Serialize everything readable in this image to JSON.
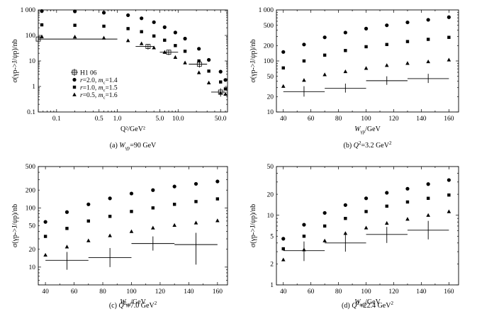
{
  "chart_data": [
    {
      "id": "a",
      "type": "scatter",
      "xscale": "log",
      "yscale": "log",
      "xlim": [
        0.05,
        65
      ],
      "ylim": [
        0.1,
        1000
      ],
      "xticks": [
        0.1,
        0.5,
        1.0,
        5.0,
        10.0,
        50.0
      ],
      "xtick_labels": [
        "0.1",
        "0.5",
        "1.0",
        "5.0",
        "10.0",
        "50.0"
      ],
      "yticks": [
        0.1,
        1,
        10,
        100,
        1000
      ],
      "ytick_labels": [
        "0.1",
        "1",
        "10",
        "100",
        "1 000"
      ],
      "xlabel": "Q²/GeV²",
      "ylabel": "σ(γp->J/ψp)/nb",
      "caption": "(a) W_γp=90 GeV",
      "caption_parts": [
        "(a) ",
        "W",
        "γp",
        "=90 GeV"
      ],
      "legend": {
        "position": "center-left",
        "entries": [
          {
            "marker": "open-square-cross",
            "label": "H1 06"
          },
          {
            "marker": "circle",
            "label": "r=2.0, m_c=1.4",
            "parts": [
              "r",
              "=2.0, ",
              "m",
              "c",
              "=1.4"
            ]
          },
          {
            "marker": "square",
            "label": "r=1.0, m_c=1.5",
            "parts": [
              "r",
              "=1.0, ",
              "m",
              "c",
              "=1.5"
            ]
          },
          {
            "marker": "triangle",
            "label": "r=0.5, m_c=1.6",
            "parts": [
              "r",
              "=0.5, ",
              "m",
              "c",
              "=1.6"
            ]
          }
        ]
      },
      "series": [
        {
          "name": "r=2.0, m_c=1.4",
          "marker": "circle",
          "x": [
            0.05,
            0.2,
            0.6,
            1.5,
            2.5,
            4.0,
            6.0,
            9.0,
            13.0,
            22.0,
            32.0,
            50.0,
            60.0
          ],
          "y": [
            900,
            880,
            780,
            620,
            470,
            330,
            210,
            130,
            75,
            30,
            11,
            3.8,
            1.8
          ]
        },
        {
          "name": "r=1.0, m_c=1.5",
          "marker": "square",
          "x": [
            0.05,
            0.2,
            0.6,
            1.5,
            2.5,
            4.0,
            6.0,
            9.0,
            13.0,
            22.0,
            32.0,
            50.0,
            60.0
          ],
          "y": [
            260,
            250,
            230,
            185,
            140,
            95,
            65,
            40,
            24,
            10,
            4,
            1.5,
            0.8
          ]
        },
        {
          "name": "r=0.5, m_c=1.6",
          "marker": "triangle",
          "x": [
            0.05,
            0.2,
            0.6,
            1.5,
            2.5,
            4.0,
            6.0,
            9.0,
            13.0,
            22.0,
            32.0,
            50.0,
            60.0
          ],
          "y": [
            90,
            88,
            80,
            63,
            48,
            33,
            22,
            14,
            8.5,
            3.5,
            1.4,
            0.55,
            0.5
          ]
        },
        {
          "name": "H1 06",
          "marker": "open-square-cross",
          "x": [
            0.05,
            3.2,
            7.0,
            22.4,
            50.0
          ],
          "xlo": [
            0.05,
            2.0,
            5.0,
            15.0,
            35.0
          ],
          "xhi": [
            1.0,
            4.0,
            10.0,
            30.0,
            60.0
          ],
          "y": [
            72,
            37,
            22,
            7.5,
            0.6
          ],
          "ylo": [
            60,
            28,
            17,
            5.5,
            0.4
          ],
          "yhi": [
            85,
            45,
            27,
            9.0,
            0.85
          ]
        }
      ]
    },
    {
      "id": "b",
      "type": "scatter",
      "xscale": "linear",
      "yscale": "log",
      "xlim": [
        35,
        167
      ],
      "ylim": [
        10,
        1000
      ],
      "xticks": [
        40,
        60,
        80,
        100,
        120,
        140,
        160
      ],
      "xtick_labels": [
        "40",
        "60",
        "80",
        "100",
        "120",
        "140",
        "160"
      ],
      "yticks": [
        10,
        20,
        50,
        100,
        200,
        500,
        1000
      ],
      "ytick_labels": [
        "10",
        "20",
        "50",
        "100",
        "200",
        "500",
        "1 000"
      ],
      "xlabel": "W_γp/GeV",
      "xlabel_parts": [
        "W",
        "γp",
        "/GeV"
      ],
      "ylabel": "σ(γp->J/ψp)/nb",
      "caption": "(b) Q²=3.2 GeV²",
      "caption_parts": [
        "(b) ",
        "Q",
        "2",
        "=3.2 GeV",
        "2"
      ],
      "series": [
        {
          "name": "r=2.0",
          "marker": "circle",
          "x": [
            40,
            55,
            70,
            85,
            100,
            115,
            130,
            145,
            160
          ],
          "y": [
            150,
            210,
            290,
            360,
            430,
            500,
            570,
            640,
            720
          ]
        },
        {
          "name": "r=1.0",
          "marker": "square",
          "x": [
            40,
            55,
            70,
            85,
            100,
            115,
            130,
            145,
            160
          ],
          "y": [
            73,
            100,
            130,
            160,
            190,
            210,
            240,
            265,
            290
          ]
        },
        {
          "name": "r=0.5",
          "marker": "triangle",
          "x": [
            40,
            55,
            70,
            85,
            100,
            115,
            130,
            145,
            160
          ],
          "y": [
            32,
            42,
            54,
            62,
            72,
            82,
            90,
            97,
            105
          ]
        },
        {
          "name": "H1 06",
          "marker": "open-square-cross",
          "x": [
            55,
            85,
            115,
            145
          ],
          "xlo": [
            40,
            70,
            100,
            130
          ],
          "xhi": [
            70,
            100,
            130,
            160
          ],
          "y": [
            25,
            29,
            41,
            45
          ],
          "ylo": [
            20,
            24,
            34,
            37
          ],
          "yhi": [
            32,
            36,
            50,
            56
          ]
        }
      ]
    },
    {
      "id": "c",
      "type": "scatter",
      "xscale": "linear",
      "yscale": "log",
      "xlim": [
        35,
        167
      ],
      "ylim": [
        5,
        500
      ],
      "xticks": [
        40,
        60,
        80,
        100,
        120,
        140,
        160
      ],
      "xtick_labels": [
        "40",
        "60",
        "80",
        "100",
        "120",
        "140",
        "160"
      ],
      "yticks": [
        10,
        20,
        50,
        100,
        200,
        500
      ],
      "ytick_labels": [
        "10",
        "20",
        "50",
        "100",
        "200",
        "500"
      ],
      "xlabel": "W_γp/GeV",
      "xlabel_parts": [
        "W",
        "γp",
        "/GeV"
      ],
      "ylabel": "σ(γp->J/ψp)/nb",
      "caption": "(c) Q²=7.0 GeV²",
      "caption_parts": [
        "(c) ",
        "Q",
        "2",
        "=7.0 GeV",
        "2"
      ],
      "series": [
        {
          "name": "r=2.0",
          "marker": "circle",
          "x": [
            40,
            55,
            70,
            85,
            100,
            115,
            130,
            145,
            160
          ],
          "y": [
            58,
            85,
            115,
            145,
            175,
            200,
            230,
            255,
            280
          ]
        },
        {
          "name": "r=1.0",
          "marker": "square",
          "x": [
            40,
            55,
            70,
            85,
            100,
            115,
            130,
            145,
            160
          ],
          "y": [
            33,
            45,
            60,
            72,
            87,
            100,
            115,
            128,
            142
          ]
        },
        {
          "name": "r=0.5",
          "marker": "triangle",
          "x": [
            40,
            55,
            70,
            85,
            100,
            115,
            130,
            145,
            160
          ],
          "y": [
            16,
            22,
            28,
            34,
            40,
            46,
            51,
            56,
            61
          ]
        },
        {
          "name": "H1 06",
          "marker": "open-square-cross",
          "x": [
            55,
            85,
            115,
            145
          ],
          "xlo": [
            40,
            70,
            100,
            130
          ],
          "xhi": [
            70,
            100,
            130,
            160
          ],
          "y": [
            13,
            14.5,
            25,
            24
          ],
          "ylo": [
            9,
            10,
            19,
            11
          ],
          "yhi": [
            18,
            21,
            33,
            38
          ]
        }
      ]
    },
    {
      "id": "d",
      "type": "scatter",
      "xscale": "linear",
      "yscale": "log",
      "xlim": [
        35,
        167
      ],
      "ylim": [
        1,
        50
      ],
      "xticks": [
        40,
        60,
        80,
        100,
        120,
        140,
        160
      ],
      "xtick_labels": [
        "40",
        "60",
        "80",
        "100",
        "120",
        "140",
        "160"
      ],
      "yticks": [
        1,
        2,
        5,
        10,
        20,
        50
      ],
      "ytick_labels": [
        "1",
        "2",
        "5",
        "10",
        "20",
        "50"
      ],
      "xlabel": "W_γp/GeV",
      "xlabel_parts": [
        "W",
        "γp",
        "/GeV"
      ],
      "ylabel": "σ(γp->J/ψp)/nb",
      "caption": "(d) Q²=22.4 GeV²",
      "caption_parts": [
        "(d) ",
        "Q",
        "2",
        "=22.4 GeV",
        "2"
      ],
      "series": [
        {
          "name": "r=2.0",
          "marker": "circle",
          "x": [
            40,
            55,
            70,
            85,
            100,
            115,
            130,
            145,
            160
          ],
          "y": [
            4.6,
            7.3,
            10.8,
            14,
            17.5,
            21,
            24,
            28,
            32
          ]
        },
        {
          "name": "r=1.0",
          "marker": "square",
          "x": [
            40,
            55,
            70,
            85,
            100,
            115,
            130,
            145,
            160
          ],
          "y": [
            3.3,
            5,
            7,
            9,
            11.3,
            13.5,
            15.5,
            17.5,
            19.5
          ]
        },
        {
          "name": "r=0.5",
          "marker": "triangle",
          "x": [
            40,
            55,
            70,
            85,
            100,
            115,
            130,
            145,
            160
          ],
          "y": [
            2.3,
            3.2,
            4.3,
            5.5,
            6.6,
            7.7,
            8.8,
            10,
            11.3
          ]
        },
        {
          "name": "H1 06",
          "marker": "open-square-cross",
          "x": [
            55,
            85,
            115,
            145
          ],
          "xlo": [
            40,
            70,
            100,
            130
          ],
          "xhi": [
            70,
            100,
            130,
            160
          ],
          "y": [
            3.1,
            4.0,
            5.3,
            6.1
          ],
          "ylo": [
            2.2,
            3.0,
            4.0,
            4.5
          ],
          "yhi": [
            4.2,
            5.3,
            6.8,
            8.3
          ]
        }
      ]
    }
  ]
}
